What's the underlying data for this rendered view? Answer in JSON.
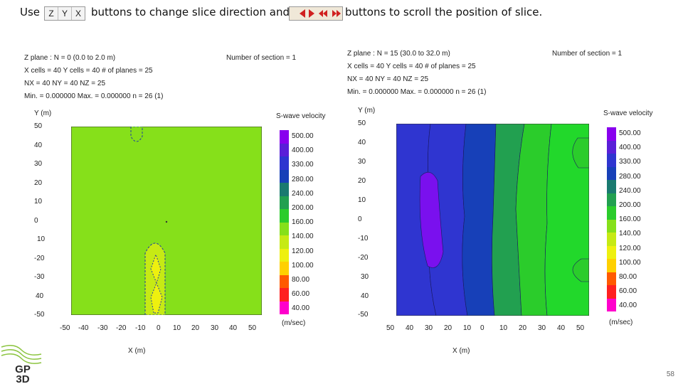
{
  "instruction": {
    "use": "Use",
    "dir_buttons": [
      "Z",
      "Y",
      "X"
    ],
    "middle": "buttons to change slice direction and",
    "end": "buttons to scroll the position of slice."
  },
  "panels": [
    {
      "info": [
        "Z plane : N = 0 (0.0 to 2.0 m)",
        "X cells = 40 Y cells = 40 # of planes = 25",
        "NX = 40 NY = 40 NZ = 25",
        "Min. = 0.000000 Max. = 0.000000 n = 26 (1)"
      ],
      "section": "Number of section = 1",
      "ylabel": "Y (m)",
      "xlabel": "X (m)",
      "yticks": [
        "50",
        "40",
        "30",
        "20",
        "10",
        "0",
        "10",
        "-20",
        "-30",
        "40",
        "-50"
      ],
      "xticks": [
        "-50",
        "-40",
        "-30",
        "-20",
        "-10",
        "0",
        "10",
        "20",
        "30",
        "40",
        "50"
      ],
      "legend_title": "S-wave velocity",
      "legend_unit": "(m/sec)"
    },
    {
      "info": [
        "Z plane : N = 15 (30.0 to 32.0 m)",
        "X cells = 40 Y cells = 40 # of planes = 25",
        "NX = 40 NY = 40 NZ = 25",
        "Min. = 0.000000 Max. = 0.000000 n = 26 (1)"
      ],
      "section": "Number of section = 1",
      "ylabel": "Y (m)",
      "xlabel": "X (m)",
      "yticks": [
        "50",
        "40",
        "30",
        "20",
        "10",
        "0",
        "-10",
        "-20",
        "30",
        "40",
        "-50"
      ],
      "xticks": [
        "50",
        "40",
        "30",
        "20",
        "10",
        "0",
        "10",
        "20",
        "30",
        "40",
        "50"
      ],
      "legend_title": "S-wave velocity",
      "legend_unit": "(m/sec)"
    }
  ],
  "legend_values": [
    "500.00",
    "400.00",
    "330.00",
    "280.00",
    "240.00",
    "200.00",
    "160.00",
    "140.00",
    "120.00",
    "100.00",
    "80.00",
    "60.00",
    "40.00"
  ],
  "legend_colors": [
    "#8800ee",
    "#5a1fd8",
    "#2f35d0",
    "#1740b8",
    "#1a7a70",
    "#22a050",
    "#2bcc2b",
    "#86e01a",
    "#c6ea14",
    "#eef00f",
    "#ffd000",
    "#ff5a00",
    "#ff2020",
    "#ff00cc"
  ],
  "page_number": "58",
  "logo_text": "GP 3D"
}
